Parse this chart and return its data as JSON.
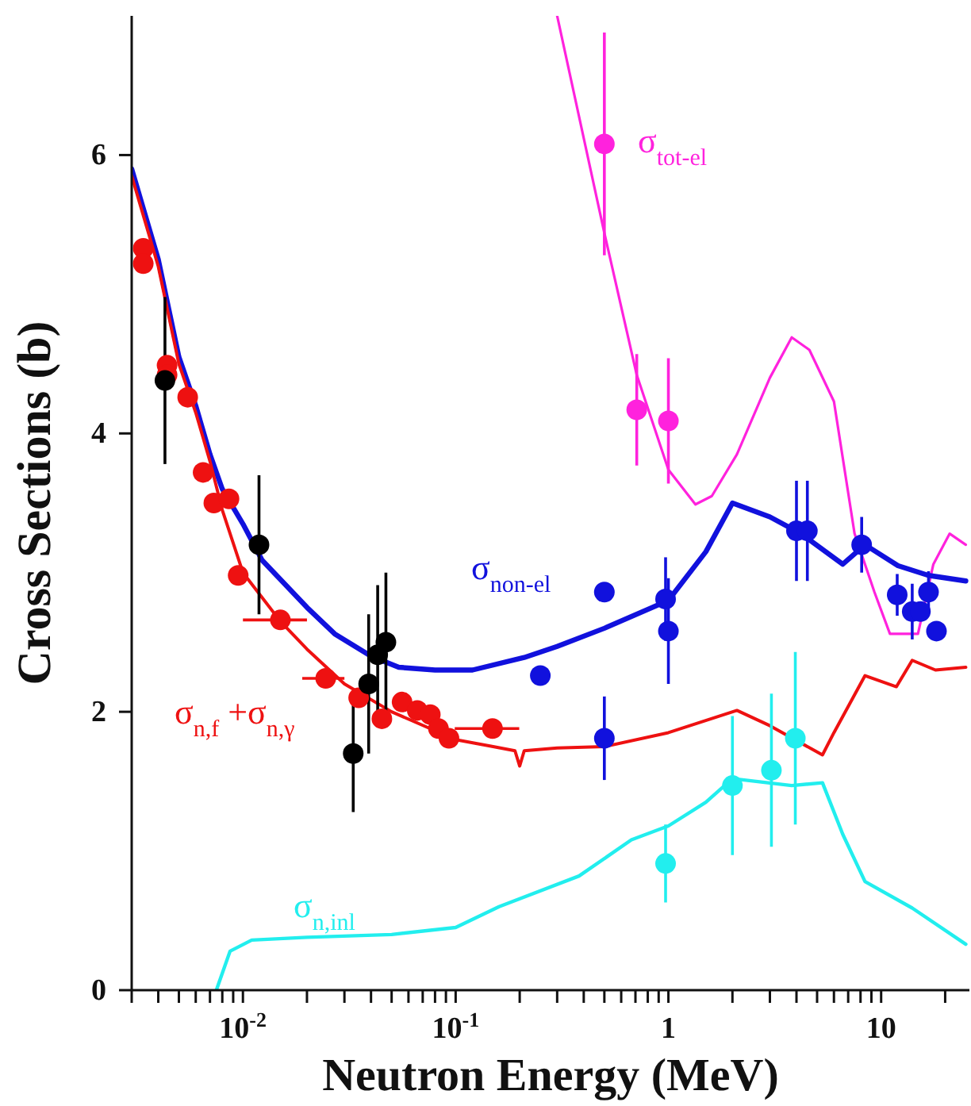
{
  "chart_data": {
    "type": "scatter",
    "xlabel": "Neutron Energy (MeV)",
    "ylabel": "Cross Sections (b)",
    "log": "x",
    "xlim": [
      0.003,
      26
    ],
    "ylim": [
      0,
      7
    ],
    "xticks": [
      {
        "value": 0.003,
        "label": null
      },
      {
        "value": 0.004,
        "label": null
      },
      {
        "value": 0.005,
        "label": null
      },
      {
        "value": 0.006,
        "label": null
      },
      {
        "value": 0.007,
        "label": null
      },
      {
        "value": 0.008,
        "label": null
      },
      {
        "value": 0.009,
        "label": null
      },
      {
        "value": 0.01,
        "label": "10$^{-2}$"
      },
      {
        "value": 0.02,
        "label": null
      },
      {
        "value": 0.03,
        "label": null
      },
      {
        "value": 0.04,
        "label": null
      },
      {
        "value": 0.05,
        "label": null
      },
      {
        "value": 0.06,
        "label": null
      },
      {
        "value": 0.07,
        "label": null
      },
      {
        "value": 0.08,
        "label": null
      },
      {
        "value": 0.09,
        "label": null
      },
      {
        "value": 0.1,
        "label": "10$^{-1}$"
      },
      {
        "value": 0.2,
        "label": null
      },
      {
        "value": 0.3,
        "label": null
      },
      {
        "value": 0.4,
        "label": null
      },
      {
        "value": 0.5,
        "label": null
      },
      {
        "value": 0.6,
        "label": null
      },
      {
        "value": 0.7,
        "label": null
      },
      {
        "value": 0.8,
        "label": null
      },
      {
        "value": 0.9,
        "label": null
      },
      1,
      {
        "value": 2,
        "label": null
      },
      {
        "value": 3,
        "label": null
      },
      {
        "value": 4,
        "label": null
      },
      {
        "value": 5,
        "label": null
      },
      {
        "value": 6,
        "label": null
      },
      {
        "value": 7,
        "label": null
      },
      {
        "value": 8,
        "label": null
      },
      {
        "value": 9,
        "label": null
      },
      10,
      {
        "value": 20,
        "label": null
      }
    ],
    "yticks": [
      0,
      2,
      4,
      6
    ],
    "series": [
      {
        "type": "line",
        "name": "σ$_{tot-el}$",
        "color": "#ff22dd",
        "marker": "none",
        "x": [
          0.3,
          0.5,
          0.71,
          1.0,
          1.34,
          1.6,
          2.1,
          3.0,
          3.8,
          4.6,
          6.0,
          7.5,
          9.3,
          11,
          14.9,
          17.6,
          21,
          25
        ],
        "values": [
          7.0,
          5.44,
          4.42,
          3.74,
          3.49,
          3.55,
          3.85,
          4.4,
          4.69,
          4.6,
          4.23,
          3.28,
          2.86,
          2.56,
          2.56,
          3.06,
          3.28,
          3.2
        ]
      },
      {
        "type": "line",
        "name": "σ$_{non-el}$",
        "color": "#1111dd",
        "marker": "none",
        "x": [
          0.003,
          0.004,
          0.005,
          0.006,
          0.007,
          0.008,
          0.01,
          0.0123,
          0.02,
          0.027,
          0.04,
          0.054,
          0.08,
          0.12,
          0.21,
          0.3,
          0.5,
          1.0,
          1.5,
          2.0,
          3.0,
          4.2,
          6.6,
          8.4,
          12,
          16.7,
          25
        ],
        "values": [
          5.9,
          5.25,
          4.55,
          4.2,
          3.85,
          3.6,
          3.35,
          3.09,
          2.75,
          2.56,
          2.4,
          2.32,
          2.3,
          2.3,
          2.39,
          2.47,
          2.6,
          2.8,
          3.15,
          3.5,
          3.4,
          3.28,
          3.06,
          3.2,
          3.05,
          2.98,
          2.94
        ]
      },
      {
        "type": "line",
        "name": "σ$_{n,f}$ +σ$_{n,γ}$",
        "color": "#ee1111",
        "marker": "none",
        "x": [
          0.003,
          0.004,
          0.005,
          0.006,
          0.007,
          0.008,
          0.01,
          0.015,
          0.02,
          0.03,
          0.05,
          0.1,
          0.15,
          0.19,
          0.2,
          0.21,
          0.3,
          0.5,
          1,
          2.1,
          3,
          5.3,
          6,
          8.4,
          11.8,
          14,
          18,
          25
        ],
        "values": [
          5.85,
          5.2,
          4.5,
          4.15,
          3.8,
          3.45,
          3.0,
          2.65,
          2.45,
          2.2,
          2.0,
          1.8,
          1.75,
          1.72,
          1.61,
          1.72,
          1.74,
          1.75,
          1.85,
          2.01,
          1.9,
          1.69,
          1.85,
          2.26,
          2.18,
          2.37,
          2.3,
          2.32
        ]
      },
      {
        "type": "line",
        "name": "σ$_{n,inl}$",
        "color": "#22eeee",
        "marker": "none",
        "x": [
          0.0075,
          0.0087,
          0.011,
          0.02,
          0.05,
          0.1,
          0.16,
          0.38,
          0.67,
          1.0,
          1.5,
          2.0,
          3.8,
          5.3,
          6.6,
          8.4,
          14,
          25
        ],
        "values": [
          0,
          0.28,
          0.36,
          0.38,
          0.4,
          0.45,
          0.6,
          0.82,
          1.08,
          1.18,
          1.35,
          1.52,
          1.47,
          1.49,
          1.12,
          0.78,
          0.59,
          0.33
        ]
      },
      {
        "color": "#ee1111",
        "marker": "circle",
        "x": [
          0.0034,
          0.0034,
          0.0044,
          0.0044,
          0.0055,
          0.0065,
          0.0073,
          0.0086,
          0.0095,
          0.015,
          0.0245,
          0.035,
          0.045,
          0.056,
          0.066,
          0.076,
          0.083,
          0.093,
          0.149
        ],
        "values": [
          5.33,
          5.22,
          4.49,
          4.42,
          4.26,
          3.72,
          3.5,
          3.53,
          2.98,
          2.66,
          2.24,
          2.1,
          1.95,
          2.07,
          2.01,
          1.98,
          1.88,
          1.81,
          1.88
        ],
        "xerrors": [
          null,
          null,
          null,
          null,
          null,
          null,
          null,
          null,
          null,
          0.005,
          0.0055,
          null,
          null,
          null,
          null,
          null,
          null,
          null,
          0.05
        ]
      },
      {
        "color": "#000000",
        "marker": "circle",
        "x": [
          0.0043,
          0.0119,
          0.033,
          0.039,
          0.043,
          0.047
        ],
        "values": [
          4.38,
          3.2,
          1.7,
          2.2,
          2.41,
          2.5
        ],
        "errors": [
          0.6,
          0.5,
          0.42,
          0.5,
          0.5,
          0.5
        ]
      },
      {
        "color": "#1111dd",
        "marker": "circle",
        "x": [
          0.25,
          0.5,
          0.5,
          0.97,
          1.0,
          4.0,
          4.5,
          8.1,
          11.9,
          14,
          15.3,
          16.7,
          18.2
        ],
        "values": [
          2.26,
          2.86,
          1.81,
          2.81,
          2.58,
          3.3,
          3.3,
          3.2,
          2.84,
          2.72,
          2.72,
          2.86,
          2.58
        ],
        "errors": [
          null,
          null,
          0.3,
          0.3,
          0.38,
          0.36,
          0.36,
          0.2,
          0.15,
          0.2,
          null,
          0.15,
          null
        ]
      },
      {
        "color": "#ff22dd",
        "marker": "circle",
        "x": [
          0.5,
          0.71,
          1.0
        ],
        "values": [
          6.08,
          4.17,
          4.09
        ],
        "errors": [
          0.8,
          0.4,
          0.45
        ]
      },
      {
        "color": "#22eeee",
        "marker": "circle",
        "x": [
          0.97,
          2.0,
          3.05,
          3.95
        ],
        "values": [
          0.91,
          1.47,
          1.58,
          1.81
        ],
        "errors": [
          0.28,
          0.5,
          0.55,
          0.62
        ]
      }
    ]
  }
}
